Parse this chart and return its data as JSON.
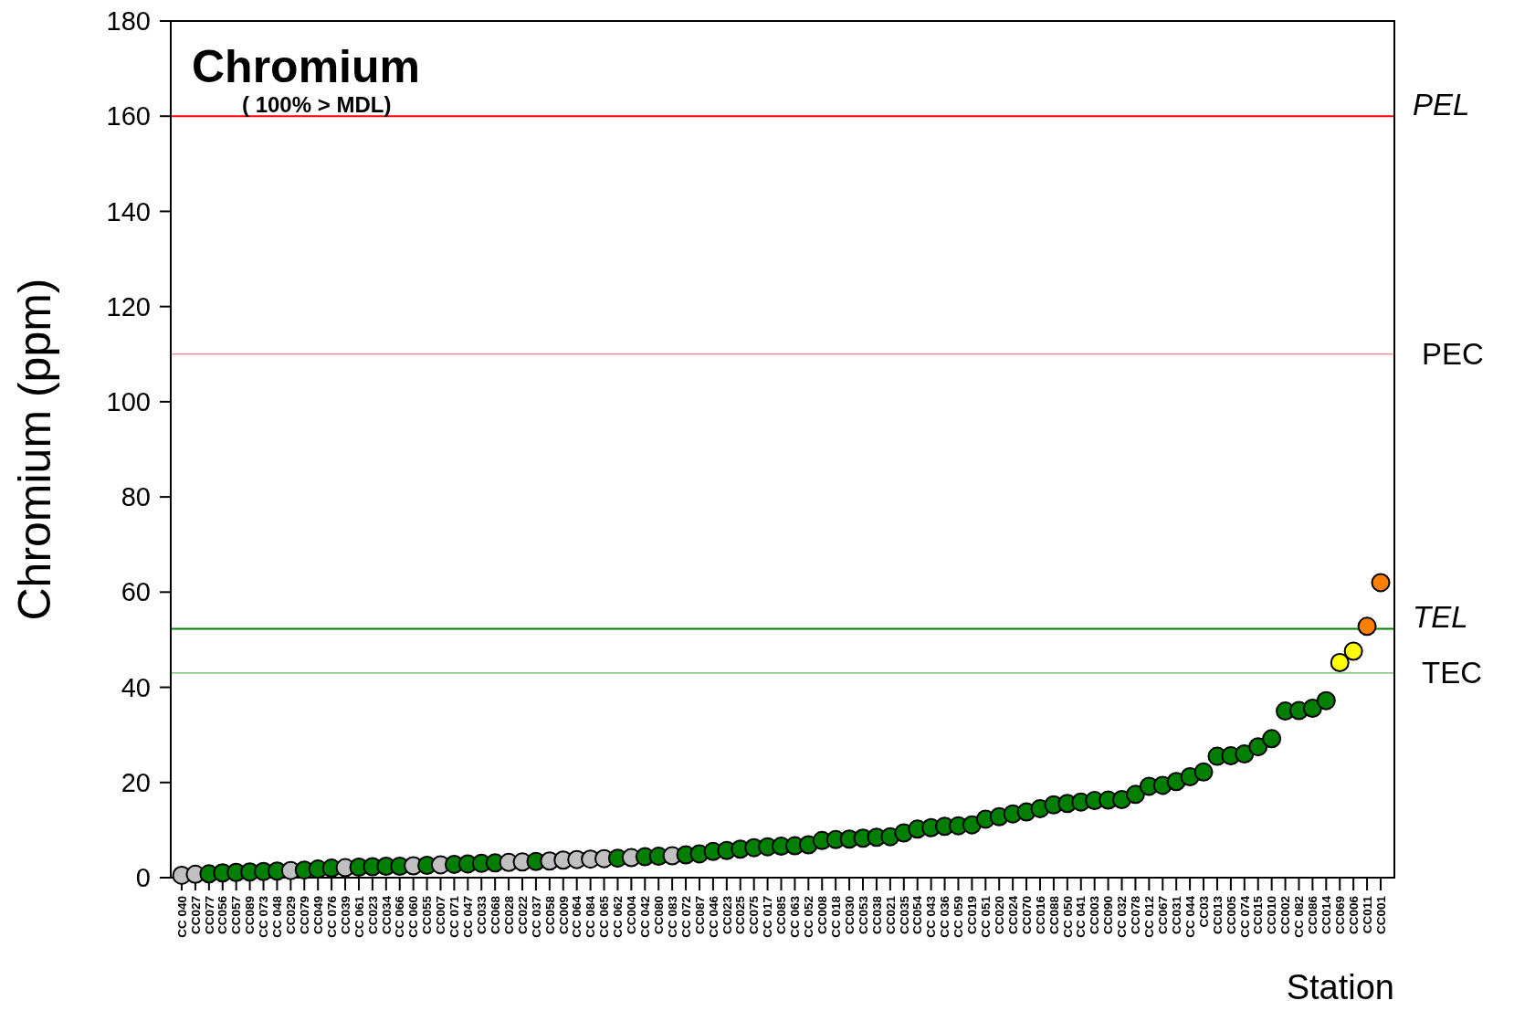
{
  "chart_data": {
    "type": "scatter",
    "title": "Chromium",
    "subtitle": "( 100% > MDL)",
    "xlabel": "Station",
    "ylabel": "Chromium (ppm)",
    "categories": [
      "CC 040",
      "CC027",
      "CC077",
      "CC056",
      "CC057",
      "CC089",
      "CC 073",
      "CC 048",
      "CC029",
      "CC079",
      "CC049",
      "CC 076",
      "CC039",
      "CC 061",
      "CC023",
      "CC034",
      "CC 066",
      "CC 060",
      "CC055",
      "CC007",
      "CC 071",
      "CC 047",
      "CC033",
      "CC068",
      "CC028",
      "CC022",
      "CC 037",
      "CC058",
      "CC009",
      "CC 064",
      "CC 084",
      "CC 065",
      "CC 062",
      "CC004",
      "CC 042",
      "CC080",
      "CC 083",
      "CC 072",
      "CC087",
      "CC 046",
      "CC023",
      "CC025",
      "CC075",
      "CC 017",
      "CC085",
      "CC 063",
      "CC 052",
      "CC008",
      "CC 018",
      "CC030",
      "CC053",
      "CC038",
      "CC021",
      "CC035",
      "CC054",
      "CC 043",
      "CC 036",
      "CC 059",
      "CC019",
      "CC 051",
      "CC020",
      "CC024",
      "CC070",
      "CC016",
      "CC088",
      "CC 050",
      "CC 041",
      "CC003",
      "CC090",
      "CC 032",
      "CC078",
      "CC 012",
      "CC067",
      "CC031",
      "CC 044",
      "CC03",
      "CC013",
      "CC005",
      "CC 074",
      "CC015",
      "CC010",
      "CC002",
      "CC 082",
      "CC086",
      "CC014",
      "CC069",
      "CC006",
      "CC011",
      "CC001"
    ],
    "series": [
      {
        "values": [
          0.5,
          0.7,
          0.8,
          1.0,
          1.1,
          1.2,
          1.3,
          1.4,
          1.5,
          1.6,
          1.8,
          2.0,
          2.1,
          2.2,
          2.3,
          2.4,
          2.4,
          2.5,
          2.6,
          2.7,
          2.8,
          2.9,
          3.0,
          3.1,
          3.2,
          3.3,
          3.4,
          3.5,
          3.7,
          3.8,
          3.9,
          4.0,
          4.1,
          4.2,
          4.4,
          4.5,
          4.6,
          4.8,
          5.0,
          5.5,
          5.7,
          6.0,
          6.3,
          6.5,
          6.6,
          6.7,
          6.9,
          7.8,
          8.0,
          8.1,
          8.3,
          8.5,
          8.6,
          9.4,
          10.2,
          10.5,
          10.8,
          10.9,
          11.1,
          12.3,
          12.8,
          13.4,
          13.8,
          14.5,
          15.3,
          15.6,
          15.9,
          16.2,
          16.3,
          16.4,
          17.5,
          19.2,
          19.4,
          20.2,
          21.2,
          22.2,
          25.5,
          25.6,
          26.0,
          27.5,
          29.2,
          35.0,
          35.1,
          35.6,
          37.2,
          45.2,
          47.6,
          52.8,
          62
        ],
        "colors": [
          "#c0c0c0",
          "#c0c0c0",
          "#007f00",
          "#007f00",
          "#007f00",
          "#007f00",
          "#007f00",
          "#007f00",
          "#c0c0c0",
          "#007f00",
          "#007f00",
          "#007f00",
          "#c0c0c0",
          "#007f00",
          "#007f00",
          "#007f00",
          "#007f00",
          "#c0c0c0",
          "#007f00",
          "#c0c0c0",
          "#007f00",
          "#007f00",
          "#007f00",
          "#007f00",
          "#c0c0c0",
          "#c0c0c0",
          "#007f00",
          "#c0c0c0",
          "#c0c0c0",
          "#c0c0c0",
          "#c0c0c0",
          "#c0c0c0",
          "#007f00",
          "#c0c0c0",
          "#007f00",
          "#007f00",
          "#c0c0c0",
          "#007f00",
          "#007f00",
          "#007f00",
          "#007f00",
          "#007f00",
          "#007f00",
          "#007f00",
          "#007f00",
          "#007f00",
          "#007f00",
          "#007f00",
          "#007f00",
          "#007f00",
          "#007f00",
          "#007f00",
          "#007f00",
          "#007f00",
          "#007f00",
          "#007f00",
          "#007f00",
          "#007f00",
          "#007f00",
          "#007f00",
          "#007f00",
          "#007f00",
          "#007f00",
          "#007f00",
          "#007f00",
          "#007f00",
          "#007f00",
          "#007f00",
          "#007f00",
          "#007f00",
          "#007f00",
          "#007f00",
          "#007f00",
          "#007f00",
          "#007f00",
          "#007f00",
          "#007f00",
          "#007f00",
          "#007f00",
          "#007f00",
          "#007f00",
          "#007f00",
          "#007f00",
          "#007f00",
          "#007f00",
          "#ffff00",
          "#ffff00",
          "#ff8000",
          "#ff8000"
        ]
      }
    ],
    "ylim": [
      0,
      180
    ],
    "yticks": [
      0,
      20,
      40,
      60,
      80,
      100,
      120,
      140,
      160,
      180
    ],
    "grid": false,
    "marker": "circle",
    "ref_lines": [
      {
        "axis": "y",
        "value": 160,
        "label": "PEL",
        "color": "#ff0000"
      },
      {
        "axis": "y",
        "value": 110,
        "label": "PEC",
        "color": "#ff6060"
      },
      {
        "axis": "y",
        "value": 52.3,
        "label": "TEL",
        "color": "#008000"
      },
      {
        "axis": "y",
        "value": 43,
        "label": "TEC",
        "color": "#40a040"
      }
    ]
  }
}
